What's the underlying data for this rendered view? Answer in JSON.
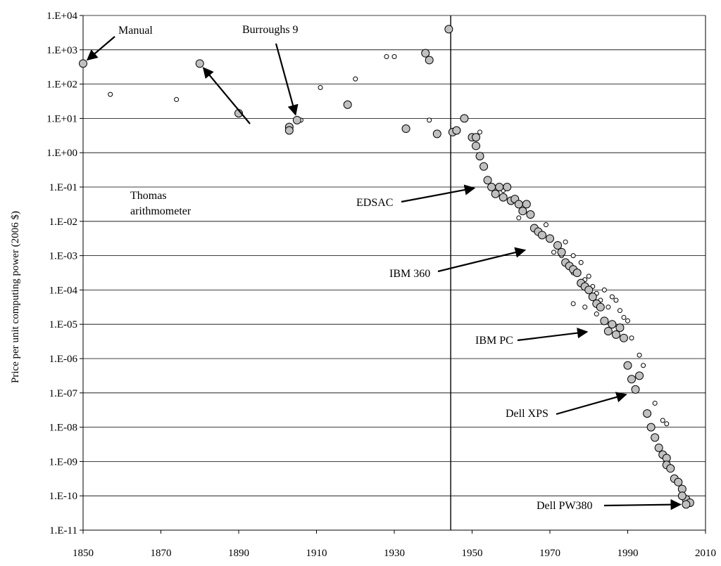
{
  "chart_data": {
    "type": "scatter",
    "ylabel": "Price per unit computing power (2006 $)",
    "y_scale": "log",
    "xlim": [
      1850,
      2010
    ],
    "ylim_exponents": [
      -11,
      4
    ],
    "x_ticks": [
      "1850",
      "1870",
      "1890",
      "1910",
      "1930",
      "1950",
      "1970",
      "1990",
      "2010"
    ],
    "y_ticks": [
      "1.E-11",
      "1.E-10",
      "1.E-09",
      "1.E-08",
      "1.E-07",
      "1.E-06",
      "1.E-05",
      "1.E-04",
      "1.E-03",
      "1.E-02",
      "1.E-01",
      "1.E+00",
      "1.E+01",
      "1.E+02",
      "1.E+03",
      "1.E+04"
    ],
    "grid": "horizontal",
    "vertical_marker_year": 1944.5,
    "series": [
      {
        "marker": "large-gray",
        "points": [
          [
            1850,
            2.6
          ],
          [
            1880,
            2.6
          ],
          [
            1890,
            1.15
          ],
          [
            1903,
            0.75
          ],
          [
            1903,
            0.65
          ],
          [
            1905,
            0.95
          ],
          [
            1918,
            1.4
          ],
          [
            1933,
            0.7
          ],
          [
            1938,
            2.9
          ],
          [
            1939,
            2.7
          ],
          [
            1941,
            0.55
          ],
          [
            1944,
            3.6
          ],
          [
            1945,
            0.6
          ],
          [
            1946,
            0.65
          ],
          [
            1948,
            1.0
          ],
          [
            1950,
            0.45
          ],
          [
            1951,
            0.2
          ],
          [
            1951,
            0.45
          ],
          [
            1952,
            -0.1
          ],
          [
            1953,
            -0.4
          ],
          [
            1954,
            -0.8
          ],
          [
            1955,
            -1.0
          ],
          [
            1956,
            -1.2
          ],
          [
            1957,
            -1.0
          ],
          [
            1958,
            -1.3
          ],
          [
            1959,
            -1.0
          ],
          [
            1960,
            -1.4
          ],
          [
            1961,
            -1.35
          ],
          [
            1962,
            -1.5
          ],
          [
            1963,
            -1.7
          ],
          [
            1964,
            -1.5
          ],
          [
            1965,
            -1.8
          ],
          [
            1966,
            -2.2
          ],
          [
            1967,
            -2.3
          ],
          [
            1968,
            -2.4
          ],
          [
            1970,
            -2.5
          ],
          [
            1972,
            -2.7
          ],
          [
            1973,
            -2.9
          ],
          [
            1974,
            -3.2
          ],
          [
            1975,
            -3.3
          ],
          [
            1976,
            -3.4
          ],
          [
            1977,
            -3.5
          ],
          [
            1978,
            -3.8
          ],
          [
            1979,
            -3.9
          ],
          [
            1980,
            -4.0
          ],
          [
            1981,
            -4.2
          ],
          [
            1982,
            -4.4
          ],
          [
            1983,
            -4.5
          ],
          [
            1984,
            -4.9
          ],
          [
            1985,
            -5.2
          ],
          [
            1986,
            -5.0
          ],
          [
            1987,
            -5.3
          ],
          [
            1988,
            -5.1
          ],
          [
            1989,
            -5.4
          ],
          [
            1990,
            -6.2
          ],
          [
            1991,
            -6.6
          ],
          [
            1992,
            -6.9
          ],
          [
            1993,
            -6.5
          ],
          [
            1995,
            -7.6
          ],
          [
            1996,
            -8.0
          ],
          [
            1997,
            -8.3
          ],
          [
            1998,
            -8.6
          ],
          [
            1999,
            -8.8
          ],
          [
            2000,
            -8.9
          ],
          [
            2000,
            -9.1
          ],
          [
            2001,
            -9.2
          ],
          [
            2002,
            -9.5
          ],
          [
            2003,
            -9.6
          ],
          [
            2004,
            -9.8
          ],
          [
            2005,
            -10.1
          ],
          [
            2006,
            -10.2
          ],
          [
            2005,
            -10.25
          ],
          [
            2004,
            -10.0
          ]
        ]
      },
      {
        "marker": "small-white",
        "points": [
          [
            1857,
            1.7
          ],
          [
            1874,
            1.55
          ],
          [
            1906,
            0.95
          ],
          [
            1911,
            1.9
          ],
          [
            1920,
            2.15
          ],
          [
            1928,
            2.8
          ],
          [
            1930,
            2.8
          ],
          [
            1939,
            0.95
          ],
          [
            1952,
            0.6
          ],
          [
            1958,
            -1.1
          ],
          [
            1962,
            -1.9
          ],
          [
            1969,
            -2.1
          ],
          [
            1971,
            -2.9
          ],
          [
            1973,
            -3.0
          ],
          [
            1974,
            -2.6
          ],
          [
            1976,
            -3.5
          ],
          [
            1976,
            -3.0
          ],
          [
            1978,
            -3.2
          ],
          [
            1979,
            -3.7
          ],
          [
            1980,
            -3.6
          ],
          [
            1981,
            -3.9
          ],
          [
            1982,
            -4.1
          ],
          [
            1983,
            -4.3
          ],
          [
            1984,
            -4.0
          ],
          [
            1985,
            -4.5
          ],
          [
            1986,
            -4.2
          ],
          [
            1987,
            -4.3
          ],
          [
            1988,
            -4.6
          ],
          [
            1989,
            -4.8
          ],
          [
            1990,
            -4.9
          ],
          [
            1991,
            -5.4
          ],
          [
            1993,
            -5.9
          ],
          [
            1994,
            -6.2
          ],
          [
            1997,
            -7.3
          ],
          [
            1999,
            -7.8
          ],
          [
            2000,
            -7.9
          ],
          [
            1976,
            -4.4
          ],
          [
            1979,
            -4.5
          ],
          [
            1982,
            -4.7
          ]
        ]
      }
    ],
    "annotations": [
      {
        "text": "Manual",
        "x": 1850,
        "y": 2.6
      },
      {
        "text": "Burroughs 9",
        "x": 1905,
        "y": 0.95
      },
      {
        "text": "Thomas",
        "x": 1880,
        "y": 2.6
      },
      {
        "text": "arithmometer",
        "x": 1880,
        "y": 2.6
      },
      {
        "text": "EDSAC",
        "x": 1952,
        "y": -1.0
      },
      {
        "text": "IBM 360",
        "x": 1965,
        "y": -2.8
      },
      {
        "text": "IBM PC",
        "x": 1981,
        "y": -5.2
      },
      {
        "text": "Dell XPS",
        "x": 1991,
        "y": -7.0
      },
      {
        "text": "Dell PW380",
        "x": 2005,
        "y": -10.25
      }
    ]
  }
}
